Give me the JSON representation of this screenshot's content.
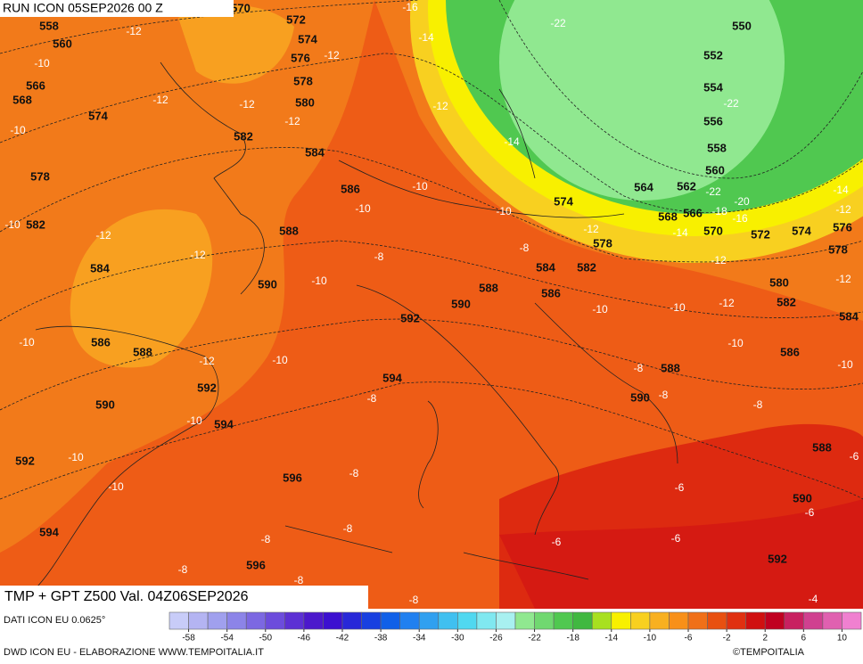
{
  "header": {
    "run": "RUN ICON 05SEP2026 00 Z",
    "title": "TMP + GPT Z500 Val. 04Z06SEP2026",
    "source": "DATI ICON EU 0.0625°",
    "credit": "DWD ICON EU - ELABORAZIONE WWW.TEMPOITALIA.IT",
    "brand": "©TEMPOITALIA"
  },
  "map": {
    "geopotential_labels": [
      558,
      560,
      566,
      568,
      574,
      578,
      582,
      584,
      586,
      588,
      590,
      592,
      594,
      570,
      572,
      574,
      576,
      578,
      580,
      582,
      584,
      586,
      588,
      590,
      592,
      594,
      596,
      596,
      592,
      594,
      590,
      588,
      586,
      584,
      582,
      578,
      574,
      564,
      562,
      568,
      566,
      570,
      572,
      574,
      576,
      578,
      580,
      582,
      584,
      586,
      588,
      590,
      588,
      590,
      592,
      550,
      552,
      554,
      556,
      558,
      560
    ],
    "temperature_labels": [
      -12,
      -10,
      -10,
      -10,
      -12,
      -12,
      -12,
      -12,
      -12,
      -16,
      -14,
      -12,
      -22,
      -14,
      -10,
      -10,
      -12,
      -10,
      -10,
      -8,
      -8,
      -12,
      -14,
      -18,
      -16,
      -20,
      -22,
      -22,
      -14,
      -12,
      -12,
      -12,
      -12,
      -10,
      -10,
      -10,
      -10,
      -10,
      -12,
      -10,
      -10,
      -10,
      -10,
      -8,
      -8,
      -8,
      -8,
      -8,
      -8,
      -8,
      -8,
      -8,
      -8,
      -6,
      -6,
      -6,
      -6,
      -6,
      -4
    ]
  },
  "legend": {
    "colors": [
      "#c8ccf8",
      "#b4b4f2",
      "#a0a0ee",
      "#8c84e8",
      "#7c68e2",
      "#6c4cdc",
      "#5c30d4",
      "#4c18cc",
      "#3c10d0",
      "#2828d8",
      "#1840e0",
      "#1060e8",
      "#2080f0",
      "#30a0f0",
      "#40c0f0",
      "#50d8f0",
      "#80e8f0",
      "#a8f0f0",
      "#90e890",
      "#70d870",
      "#50c850",
      "#40b840",
      "#a8e020",
      "#f8f000",
      "#f8d020",
      "#f8b020",
      "#f89018",
      "#f07018",
      "#e85010",
      "#e03010",
      "#d01010",
      "#c00020",
      "#c82060",
      "#d04090",
      "#e060b0",
      "#f080d0"
    ],
    "ticks": [
      -58,
      -54,
      -50,
      -46,
      -42,
      -38,
      -34,
      -30,
      -26,
      -22,
      -18,
      -14,
      -10,
      -6,
      -2,
      2,
      6,
      10
    ]
  }
}
